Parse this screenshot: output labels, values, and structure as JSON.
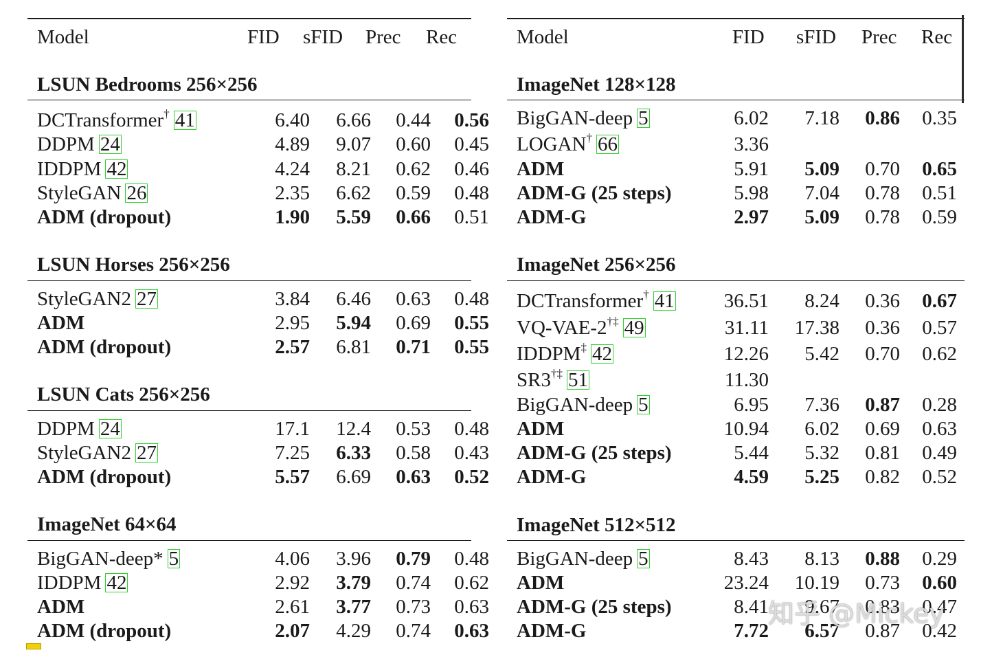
{
  "headers": {
    "model": "Model",
    "fid": "FID",
    "sfid": "sFID",
    "prec": "Prec",
    "rec": "Rec"
  },
  "panels": [
    {
      "sections": [
        {
          "title": "LSUN Bedrooms 256×256",
          "rows": [
            {
              "name": "DCTransformer",
              "sup": "†",
              "cite": "41",
              "name_bold": false,
              "fid": "6.40",
              "sfid": "6.66",
              "prec": "0.44",
              "rec": "0.56",
              "bold": [
                "rec"
              ]
            },
            {
              "name": "DDPM",
              "sup": "",
              "cite": "24",
              "name_bold": false,
              "fid": "4.89",
              "sfid": "9.07",
              "prec": "0.60",
              "rec": "0.45",
              "bold": []
            },
            {
              "name": "IDDPM",
              "sup": "",
              "cite": "42",
              "name_bold": false,
              "fid": "4.24",
              "sfid": "8.21",
              "prec": "0.62",
              "rec": "0.46",
              "bold": []
            },
            {
              "name": "StyleGAN",
              "sup": "",
              "cite": "26",
              "name_bold": false,
              "fid": "2.35",
              "sfid": "6.62",
              "prec": "0.59",
              "rec": "0.48",
              "bold": []
            },
            {
              "name": "ADM (dropout)",
              "sup": "",
              "cite": "",
              "name_bold": true,
              "fid": "1.90",
              "sfid": "5.59",
              "prec": "0.66",
              "rec": "0.51",
              "bold": [
                "fid",
                "sfid",
                "prec"
              ]
            }
          ]
        },
        {
          "title": "LSUN Horses 256×256",
          "rows": [
            {
              "name": "StyleGAN2",
              "sup": "",
              "cite": "27",
              "name_bold": false,
              "fid": "3.84",
              "sfid": "6.46",
              "prec": "0.63",
              "rec": "0.48",
              "bold": []
            },
            {
              "name": "ADM",
              "sup": "",
              "cite": "",
              "name_bold": true,
              "fid": "2.95",
              "sfid": "5.94",
              "prec": "0.69",
              "rec": "0.55",
              "bold": [
                "sfid",
                "rec"
              ]
            },
            {
              "name": "ADM (dropout)",
              "sup": "",
              "cite": "",
              "name_bold": true,
              "fid": "2.57",
              "sfid": "6.81",
              "prec": "0.71",
              "rec": "0.55",
              "bold": [
                "fid",
                "prec",
                "rec"
              ]
            }
          ]
        },
        {
          "title": "LSUN Cats 256×256",
          "rows": [
            {
              "name": "DDPM",
              "sup": "",
              "cite": "24",
              "name_bold": false,
              "fid": "17.1",
              "sfid": "12.4",
              "prec": "0.53",
              "rec": "0.48",
              "bold": []
            },
            {
              "name": "StyleGAN2",
              "sup": "",
              "cite": "27",
              "name_bold": false,
              "fid": "7.25",
              "sfid": "6.33",
              "prec": "0.58",
              "rec": "0.43",
              "bold": [
                "sfid"
              ]
            },
            {
              "name": "ADM (dropout)",
              "sup": "",
              "cite": "",
              "name_bold": true,
              "fid": "5.57",
              "sfid": "6.69",
              "prec": "0.63",
              "rec": "0.52",
              "bold": [
                "fid",
                "prec",
                "rec"
              ]
            }
          ]
        },
        {
          "title": "ImageNet 64×64",
          "rows": [
            {
              "name": "BigGAN-deep*",
              "sup": "",
              "cite": "5",
              "name_bold": false,
              "fid": "4.06",
              "sfid": "3.96",
              "prec": "0.79",
              "rec": "0.48",
              "bold": [
                "prec"
              ]
            },
            {
              "name": "IDDPM",
              "sup": "",
              "cite": "42",
              "name_bold": false,
              "fid": "2.92",
              "sfid": "3.79",
              "prec": "0.74",
              "rec": "0.62",
              "bold": [
                "sfid"
              ]
            },
            {
              "name": "ADM",
              "sup": "",
              "cite": "",
              "name_bold": true,
              "fid": "2.61",
              "sfid": "3.77",
              "prec": "0.73",
              "rec": "0.63",
              "bold": [
                "sfid"
              ]
            },
            {
              "name": "ADM (dropout)",
              "sup": "",
              "cite": "",
              "name_bold": true,
              "fid": "2.07",
              "sfid": "4.29",
              "prec": "0.74",
              "rec": "0.63",
              "bold": [
                "fid",
                "rec"
              ]
            }
          ]
        }
      ]
    },
    {
      "sections": [
        {
          "title": "ImageNet 128×128",
          "rows": [
            {
              "name": "BigGAN-deep",
              "sup": "",
              "cite": "5",
              "name_bold": false,
              "fid": "6.02",
              "sfid": "7.18",
              "prec": "0.86",
              "rec": "0.35",
              "bold": [
                "prec"
              ]
            },
            {
              "name": "LOGAN",
              "sup": "†",
              "cite": "66",
              "name_bold": false,
              "fid": "3.36",
              "sfid": "",
              "prec": "",
              "rec": "",
              "bold": []
            },
            {
              "name": "ADM",
              "sup": "",
              "cite": "",
              "name_bold": true,
              "fid": "5.91",
              "sfid": "5.09",
              "prec": "0.70",
              "rec": "0.65",
              "bold": [
                "sfid",
                "rec"
              ]
            },
            {
              "name": "ADM-G (25 steps)",
              "sup": "",
              "cite": "",
              "name_bold": true,
              "fid": "5.98",
              "sfid": "7.04",
              "prec": "0.78",
              "rec": "0.51",
              "bold": []
            },
            {
              "name": "ADM-G",
              "sup": "",
              "cite": "",
              "name_bold": true,
              "fid": "2.97",
              "sfid": "5.09",
              "prec": "0.78",
              "rec": "0.59",
              "bold": [
                "fid",
                "sfid"
              ]
            }
          ]
        },
        {
          "title": "ImageNet 256×256",
          "rows": [
            {
              "name": "DCTransformer",
              "sup": "†",
              "cite": "41",
              "name_bold": false,
              "fid": "36.51",
              "sfid": "8.24",
              "prec": "0.36",
              "rec": "0.67",
              "bold": [
                "rec"
              ]
            },
            {
              "name": "VQ-VAE-2",
              "sup": "†‡",
              "cite": "49",
              "name_bold": false,
              "fid": "31.11",
              "sfid": "17.38",
              "prec": "0.36",
              "rec": "0.57",
              "bold": []
            },
            {
              "name": "IDDPM",
              "sup": "‡",
              "cite": "42",
              "name_bold": false,
              "fid": "12.26",
              "sfid": "5.42",
              "prec": "0.70",
              "rec": "0.62",
              "bold": []
            },
            {
              "name": "SR3",
              "sup": "†‡",
              "cite": "51",
              "name_bold": false,
              "fid": "11.30",
              "sfid": "",
              "prec": "",
              "rec": "",
              "bold": []
            },
            {
              "name": "BigGAN-deep",
              "sup": "",
              "cite": "5",
              "name_bold": false,
              "fid": "6.95",
              "sfid": "7.36",
              "prec": "0.87",
              "rec": "0.28",
              "bold": [
                "prec"
              ]
            },
            {
              "name": "ADM",
              "sup": "",
              "cite": "",
              "name_bold": true,
              "fid": "10.94",
              "sfid": "6.02",
              "prec": "0.69",
              "rec": "0.63",
              "bold": []
            },
            {
              "name": "ADM-G (25 steps)",
              "sup": "",
              "cite": "",
              "name_bold": true,
              "fid": "5.44",
              "sfid": "5.32",
              "prec": "0.81",
              "rec": "0.49",
              "bold": []
            },
            {
              "name": "ADM-G",
              "sup": "",
              "cite": "",
              "name_bold": true,
              "fid": "4.59",
              "sfid": "5.25",
              "prec": "0.82",
              "rec": "0.52",
              "bold": [
                "fid",
                "sfid"
              ]
            }
          ]
        },
        {
          "title": "ImageNet 512×512",
          "rows": [
            {
              "name": "BigGAN-deep",
              "sup": "",
              "cite": "5",
              "name_bold": false,
              "fid": "8.43",
              "sfid": "8.13",
              "prec": "0.88",
              "rec": "0.29",
              "bold": [
                "prec"
              ]
            },
            {
              "name": "ADM",
              "sup": "",
              "cite": "",
              "name_bold": true,
              "fid": "23.24",
              "sfid": "10.19",
              "prec": "0.73",
              "rec": "0.60",
              "bold": [
                "rec"
              ]
            },
            {
              "name": "ADM-G (25 steps)",
              "sup": "",
              "cite": "",
              "name_bold": true,
              "fid": "8.41",
              "sfid": "9.67",
              "prec": "0.83",
              "rec": "0.47",
              "bold": []
            },
            {
              "name": "ADM-G",
              "sup": "",
              "cite": "",
              "name_bold": true,
              "fid": "7.72",
              "sfid": "6.57",
              "prec": "0.87",
              "rec": "0.42",
              "bold": [
                "fid",
                "sfid"
              ]
            }
          ]
        }
      ]
    }
  ],
  "watermark": "知乎 @Mickey"
}
